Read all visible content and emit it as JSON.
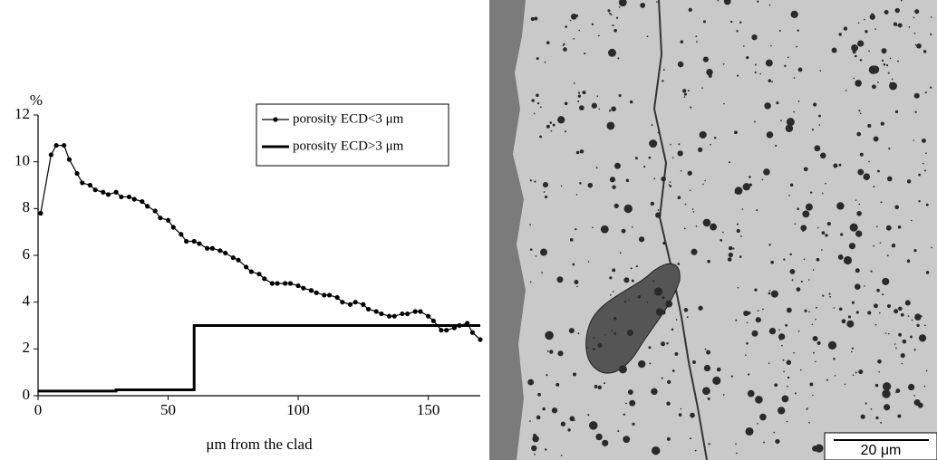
{
  "chart_data": {
    "type": "line",
    "ylabel": "%",
    "xlabel": "μm from the clad",
    "xlim": [
      0,
      170
    ],
    "xticks": [
      0,
      50,
      100,
      150
    ],
    "ylim": [
      0,
      12
    ],
    "yticks": [
      0,
      2,
      4,
      6,
      8,
      10,
      12
    ],
    "grid": false,
    "legend": "upper right",
    "series": [
      {
        "name": "porosity ECD<3 μm",
        "color": "#000000",
        "marker": true,
        "x": [
          1,
          5,
          7,
          10,
          12,
          15,
          17,
          20,
          22,
          25,
          27,
          30,
          32,
          35,
          37,
          40,
          42,
          45,
          47,
          50,
          52,
          55,
          57,
          60,
          62,
          65,
          67,
          70,
          72,
          75,
          77,
          80,
          82,
          85,
          87,
          90,
          92,
          95,
          97,
          100,
          102,
          105,
          107,
          110,
          112,
          115,
          117,
          120,
          122,
          125,
          127,
          130,
          132,
          135,
          137,
          140,
          142,
          145,
          147,
          150,
          152,
          155,
          157,
          160,
          162,
          165,
          167,
          170
        ],
        "values": [
          7.8,
          10.3,
          10.7,
          10.7,
          10.1,
          9.5,
          9.1,
          9.0,
          8.8,
          8.7,
          8.6,
          8.7,
          8.5,
          8.5,
          8.4,
          8.3,
          8.1,
          7.9,
          7.6,
          7.5,
          7.2,
          6.9,
          6.6,
          6.6,
          6.5,
          6.3,
          6.3,
          6.2,
          6.1,
          5.9,
          5.8,
          5.5,
          5.3,
          5.2,
          5.0,
          4.8,
          4.8,
          4.8,
          4.8,
          4.7,
          4.6,
          4.5,
          4.4,
          4.3,
          4.3,
          4.2,
          4.0,
          3.9,
          4.0,
          3.9,
          3.7,
          3.6,
          3.5,
          3.4,
          3.4,
          3.5,
          3.5,
          3.6,
          3.6,
          3.4,
          3.2,
          2.8,
          2.8,
          2.9,
          3.0,
          3.1,
          2.7,
          2.4
        ]
      },
      {
        "name": "porosity ECD>3 μm",
        "color": "#000000",
        "marker": false,
        "x": [
          0,
          30,
          30,
          60,
          60,
          170
        ],
        "values": [
          0.2,
          0.2,
          0.25,
          0.25,
          3.0,
          3.0
        ]
      }
    ]
  },
  "image": {
    "scale_bar": "20 μm"
  }
}
